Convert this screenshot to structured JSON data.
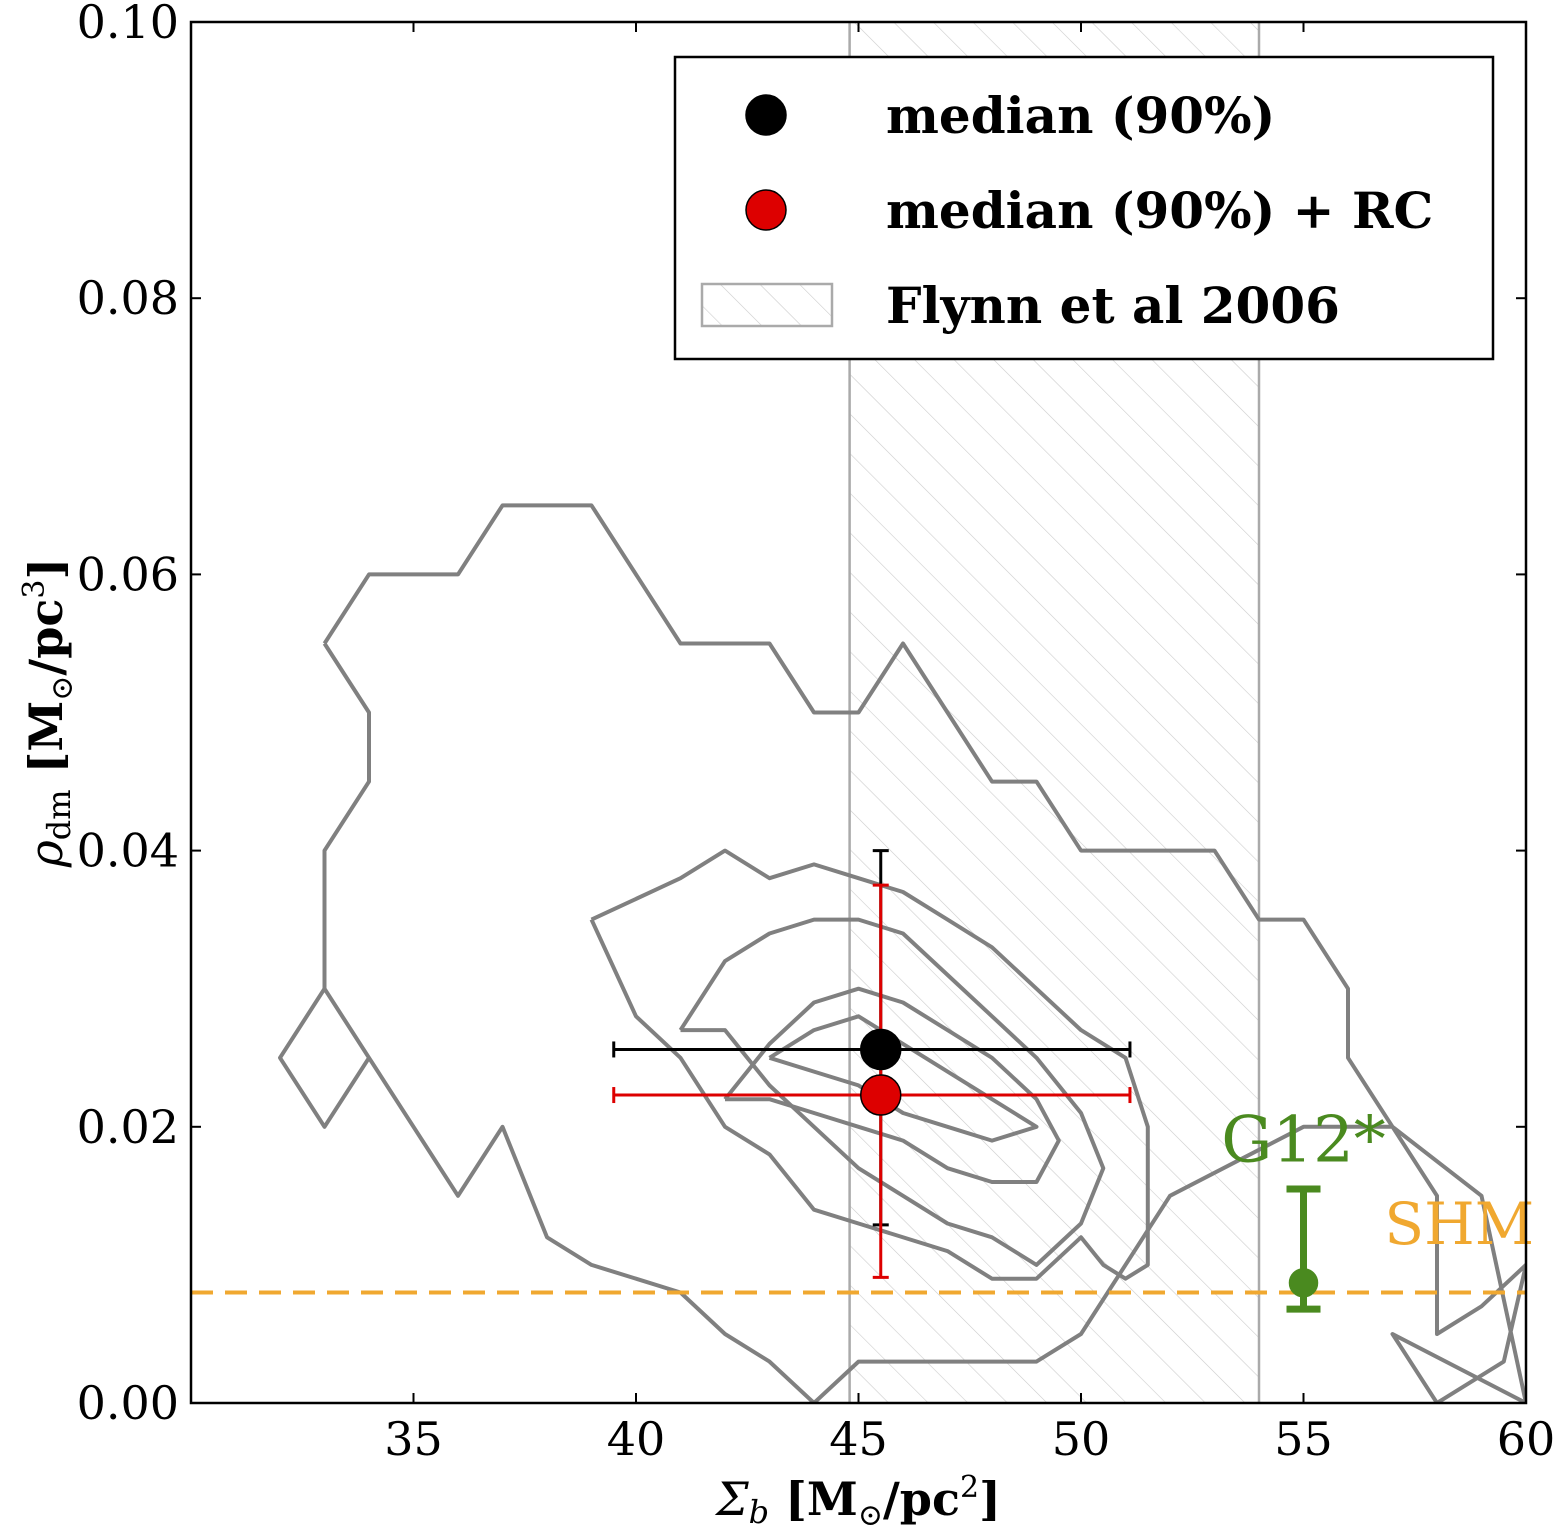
{
  "chart_data": {
    "type": "scatter",
    "xlabel": "Σb [M⊙/pc²]",
    "xlabel_parts": {
      "symbol": "Σ",
      "sub": "b",
      "unit_pre": " [M",
      "unit_sub": "⊙",
      "unit_post": "/pc",
      "unit_sup": "2",
      "unit_close": "]"
    },
    "ylabel": "ρdm [M⊙/pc³]",
    "ylabel_parts": {
      "symbol": "ρ",
      "sub": "dm",
      "unit_pre": " [M",
      "unit_sub": "⊙",
      "unit_post": "/pc",
      "unit_sup": "3",
      "unit_close": "]"
    },
    "xlim": [
      30,
      60
    ],
    "ylim": [
      0.0,
      0.1
    ],
    "xticks": [
      35,
      40,
      45,
      50,
      55,
      60
    ],
    "xtick_labels": [
      "35",
      "40",
      "45",
      "50",
      "55",
      "60"
    ],
    "yticks": [
      0.0,
      0.02,
      0.04,
      0.06,
      0.08,
      0.1
    ],
    "ytick_labels": [
      "0.00",
      "0.02",
      "0.04",
      "0.06",
      "0.08",
      "0.10"
    ],
    "grid": false,
    "legend": {
      "placement": "top-right",
      "entries": [
        {
          "label": "median (90%)",
          "marker": "circle",
          "color": "#000000"
        },
        {
          "label": "median (90%) + RC",
          "marker": "circle",
          "color": "#dd0000"
        },
        {
          "label": "Flynn et al 2006",
          "marker": "hatched-band",
          "color": "#aaaaaa"
        }
      ]
    },
    "band": {
      "name": "Flynn et al 2006",
      "x_range": [
        44.8,
        54.0
      ],
      "color": "#aaaaaa"
    },
    "points": [
      {
        "name": "median (90%)",
        "x": 45.5,
        "y": 0.0256,
        "x_err": [
          39.5,
          51.1
        ],
        "y_err": [
          0.0129,
          0.04
        ],
        "color": "#000000"
      },
      {
        "name": "median (90%) + RC",
        "x": 45.5,
        "y": 0.0223,
        "x_err": [
          39.5,
          51.1
        ],
        "y_err": [
          0.0091,
          0.0375
        ],
        "color": "#dd0000"
      },
      {
        "name": "G12*",
        "x": 55.0,
        "y": 0.0087,
        "y_err": [
          0.0068,
          0.0155
        ],
        "color": "#4a8a1f"
      }
    ],
    "hline": {
      "name": "SHM",
      "y": 0.008,
      "color": "#f0a830",
      "style": "dashed"
    },
    "annotations": [
      {
        "text": "G12*",
        "x": 55.0,
        "y": 0.0175,
        "color": "#4a8a1f"
      },
      {
        "text": "SHM",
        "x": 58.5,
        "y": 0.0115,
        "color": "#f0a830"
      }
    ],
    "contours": [
      {
        "level": 1,
        "points": [
          [
            33,
            0.055
          ],
          [
            34,
            0.06
          ],
          [
            36,
            0.06
          ],
          [
            37,
            0.065
          ],
          [
            39,
            0.065
          ],
          [
            40,
            0.06
          ],
          [
            41,
            0.055
          ],
          [
            43,
            0.055
          ],
          [
            44,
            0.05
          ],
          [
            45,
            0.05
          ],
          [
            46,
            0.055
          ],
          [
            47,
            0.05
          ],
          [
            48,
            0.045
          ],
          [
            49,
            0.045
          ],
          [
            50,
            0.04
          ],
          [
            53,
            0.04
          ],
          [
            54,
            0.035
          ],
          [
            55,
            0.035
          ],
          [
            56,
            0.03
          ],
          [
            56,
            0.025
          ],
          [
            57,
            0.02
          ],
          [
            58,
            0.015
          ],
          [
            58,
            0.005
          ],
          [
            59,
            0.007
          ],
          [
            60,
            0.01
          ],
          [
            59.5,
            0.003
          ],
          [
            58,
            0
          ],
          [
            57,
            0.005
          ],
          [
            60,
            0.0
          ],
          [
            59,
            0.015
          ],
          [
            57,
            0.02
          ],
          [
            55,
            0.02
          ],
          [
            52,
            0.015
          ],
          [
            50,
            0.005
          ],
          [
            49,
            0.003
          ],
          [
            45,
            0.003
          ],
          [
            44,
            0
          ],
          [
            43,
            0.003
          ],
          [
            42,
            0.005
          ],
          [
            41,
            0.008
          ],
          [
            39,
            0.01
          ],
          [
            38,
            0.012
          ],
          [
            37,
            0.02
          ],
          [
            36,
            0.015
          ],
          [
            35,
            0.02
          ],
          [
            34,
            0.025
          ],
          [
            33,
            0.03
          ],
          [
            32,
            0.025
          ],
          [
            33,
            0.02
          ],
          [
            34,
            0.025
          ],
          [
            33,
            0.03
          ],
          [
            33,
            0.035
          ],
          [
            33,
            0.04
          ],
          [
            34,
            0.045
          ],
          [
            34,
            0.05
          ],
          [
            33,
            0.055
          ]
        ]
      },
      {
        "level": 2,
        "points": [
          [
            39,
            0.035
          ],
          [
            41,
            0.038
          ],
          [
            42,
            0.04
          ],
          [
            43,
            0.038
          ],
          [
            44,
            0.039
          ],
          [
            45,
            0.038
          ],
          [
            46,
            0.037
          ],
          [
            47,
            0.035
          ],
          [
            48,
            0.033
          ],
          [
            49,
            0.03
          ],
          [
            50,
            0.027
          ],
          [
            51,
            0.025
          ],
          [
            51.5,
            0.02
          ],
          [
            51.5,
            0.01
          ],
          [
            51,
            0.009
          ],
          [
            50.5,
            0.01
          ],
          [
            50,
            0.012
          ],
          [
            49,
            0.009
          ],
          [
            48,
            0.009
          ],
          [
            47,
            0.011
          ],
          [
            45,
            0.013
          ],
          [
            44,
            0.014
          ],
          [
            43,
            0.018
          ],
          [
            42,
            0.02
          ],
          [
            41,
            0.025
          ],
          [
            40,
            0.028
          ],
          [
            39,
            0.035
          ]
        ]
      },
      {
        "level": 3,
        "points": [
          [
            41,
            0.027
          ],
          [
            42,
            0.032
          ],
          [
            43,
            0.034
          ],
          [
            44,
            0.035
          ],
          [
            45,
            0.035
          ],
          [
            46,
            0.034
          ],
          [
            47,
            0.031
          ],
          [
            48,
            0.028
          ],
          [
            49,
            0.025
          ],
          [
            50,
            0.021
          ],
          [
            50.5,
            0.017
          ],
          [
            50,
            0.013
          ],
          [
            49,
            0.01
          ],
          [
            48,
            0.012
          ],
          [
            47,
            0.013
          ],
          [
            46,
            0.015
          ],
          [
            45,
            0.017
          ],
          [
            44,
            0.02
          ],
          [
            43,
            0.023
          ],
          [
            42,
            0.027
          ],
          [
            41,
            0.027
          ]
        ]
      },
      {
        "level": 4,
        "points": [
          [
            42,
            0.022
          ],
          [
            43,
            0.026
          ],
          [
            44,
            0.029
          ],
          [
            45,
            0.03
          ],
          [
            46,
            0.029
          ],
          [
            47,
            0.027
          ],
          [
            48,
            0.025
          ],
          [
            49,
            0.022
          ],
          [
            49.5,
            0.019
          ],
          [
            49,
            0.016
          ],
          [
            48,
            0.016
          ],
          [
            47,
            0.017
          ],
          [
            46,
            0.019
          ],
          [
            45,
            0.02
          ],
          [
            44,
            0.021
          ],
          [
            43,
            0.022
          ],
          [
            42,
            0.022
          ]
        ]
      },
      {
        "level": 5,
        "points": [
          [
            43,
            0.025
          ],
          [
            44,
            0.027
          ],
          [
            45,
            0.028
          ],
          [
            46,
            0.026
          ],
          [
            47,
            0.024
          ],
          [
            48,
            0.022
          ],
          [
            49,
            0.02
          ],
          [
            48,
            0.019
          ],
          [
            47,
            0.02
          ],
          [
            46,
            0.021
          ],
          [
            45,
            0.023
          ],
          [
            44,
            0.024
          ],
          [
            43,
            0.025
          ]
        ]
      }
    ]
  }
}
